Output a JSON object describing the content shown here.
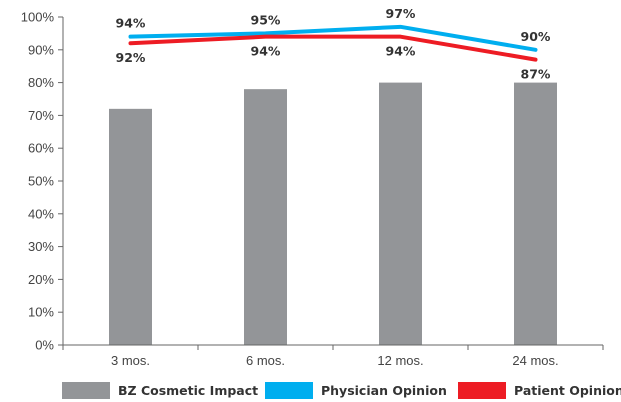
{
  "colors": {
    "bars": "#939598",
    "physician": "#00AEEF",
    "patient": "#ED1C24",
    "axis": "#666666",
    "text": "#333333"
  },
  "chart_data": {
    "type": "bar",
    "categories": [
      "3 mos.",
      "6 mos.",
      "12 mos.",
      "24 mos."
    ],
    "ylim": [
      0,
      100
    ],
    "y_ticks": [
      "0%",
      "10%",
      "20%",
      "30%",
      "40%",
      "50%",
      "60%",
      "70%",
      "80%",
      "90%",
      "100%"
    ],
    "grid": false,
    "legend_position": "bottom",
    "series": [
      {
        "name": "BZ Cosmetic Impact",
        "kind": "bar",
        "values": [
          72,
          78,
          80,
          80
        ]
      },
      {
        "name": "Physician Opinion",
        "kind": "line",
        "values": [
          94,
          95,
          97,
          90
        ],
        "labels": [
          "94%",
          "95%",
          "97%",
          "90%"
        ]
      },
      {
        "name": "Patient Opinion",
        "kind": "line",
        "values": [
          92,
          94,
          94,
          87
        ],
        "labels": [
          "92%",
          "94%",
          "94%",
          "87%"
        ]
      }
    ]
  },
  "legend": {
    "items": [
      {
        "label": "BZ Cosmetic Impact"
      },
      {
        "label": "Physician Opinion"
      },
      {
        "label": "Patient Opinion"
      }
    ]
  }
}
